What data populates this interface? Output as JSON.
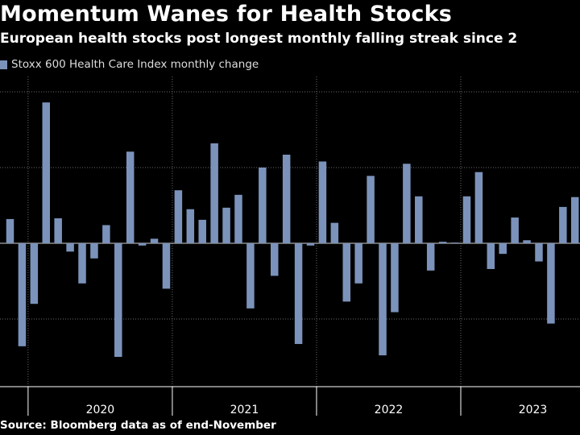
{
  "header": {
    "title": "Momentum Wanes for Health Stocks",
    "subtitle": "European health stocks post longest monthly falling streak since 2"
  },
  "legend": {
    "label": "Stoxx 600 Health Care Index monthly change"
  },
  "footer": {
    "source": "Source: Bloomberg data as of end-November"
  },
  "colors": {
    "bar": "#7b93bb",
    "background": "#000000",
    "grid": "#6a6a6a"
  },
  "chart_data": {
    "type": "bar",
    "title": "Momentum Wanes for Health Stocks",
    "series": [
      {
        "name": "Stoxx 600 Health Care Index monthly change",
        "values": [
          3.2,
          -13.6,
          -8.0,
          18.6,
          3.3,
          -1.1,
          -5.3,
          -2.0,
          2.4,
          -15.0,
          12.1,
          -0.3,
          0.6,
          -6.0,
          7.0,
          4.5,
          3.1,
          13.2,
          4.7,
          6.4,
          -8.6,
          10.0,
          -4.3,
          11.7,
          -13.3,
          -0.3,
          10.8,
          2.7,
          -7.7,
          -5.3,
          8.9,
          -14.8,
          -9.1,
          10.5,
          6.2,
          -3.6,
          0.2,
          0.1,
          6.2,
          9.4,
          -3.4,
          -1.4,
          3.4,
          0.4,
          -2.4,
          -10.6,
          4.8,
          6.1,
          7.3
        ]
      }
    ],
    "x_axis_labels": [
      "2020",
      "2021",
      "2022",
      "2023"
    ],
    "months_start": "2019-11",
    "ylim": [
      -18,
      20
    ],
    "gridlines": [
      -10,
      0,
      10,
      20
    ],
    "xlabel": "",
    "ylabel": ""
  }
}
